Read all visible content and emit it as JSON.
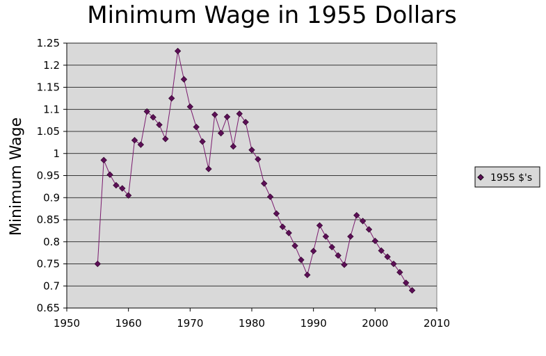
{
  "chart_data": {
    "type": "line",
    "title": "Minimum Wage in 1955 Dollars",
    "xlabel": "",
    "ylabel": "Minimum Wage",
    "xlim": [
      1950,
      2010
    ],
    "ylim": [
      0.65,
      1.25
    ],
    "x_ticks": [
      "1950",
      "1960",
      "1970",
      "1980",
      "1990",
      "2000",
      "2010"
    ],
    "y_ticks": [
      "0.65",
      "0.7",
      "0.75",
      "0.8",
      "0.85",
      "0.9",
      "0.95",
      "1",
      "1.05",
      "1.1",
      "1.15",
      "1.2",
      "1.25"
    ],
    "grid": true,
    "legend_position": "right",
    "colors": {
      "series": "#7a1a6e",
      "marker": "#5c0f56",
      "plot_bg": "#d9d9d9"
    },
    "series": [
      {
        "name": "1955 $'s",
        "x": [
          1955,
          1956,
          1957,
          1958,
          1959,
          1960,
          1961,
          1962,
          1963,
          1964,
          1965,
          1966,
          1967,
          1968,
          1969,
          1970,
          1971,
          1972,
          1973,
          1974,
          1975,
          1976,
          1977,
          1978,
          1979,
          1980,
          1981,
          1982,
          1983,
          1984,
          1985,
          1986,
          1987,
          1988,
          1989,
          1990,
          1991,
          1992,
          1993,
          1994,
          1995,
          1996,
          1997,
          1998,
          1999,
          2000,
          2001,
          2002,
          2003,
          2004,
          2005,
          2006
        ],
        "y": [
          0.75,
          0.985,
          0.952,
          0.928,
          0.921,
          0.905,
          1.03,
          1.02,
          1.095,
          1.082,
          1.065,
          1.033,
          1.125,
          1.232,
          1.168,
          1.106,
          1.06,
          1.027,
          0.965,
          1.088,
          1.046,
          1.083,
          1.016,
          1.09,
          1.071,
          1.008,
          0.987,
          0.932,
          0.902,
          0.864,
          0.834,
          0.82,
          0.791,
          0.759,
          0.725,
          0.779,
          0.837,
          0.812,
          0.788,
          0.769,
          0.748,
          0.812,
          0.86,
          0.847,
          0.828,
          0.802,
          0.78,
          0.766,
          0.75,
          0.731,
          0.707,
          0.69
        ]
      }
    ]
  }
}
